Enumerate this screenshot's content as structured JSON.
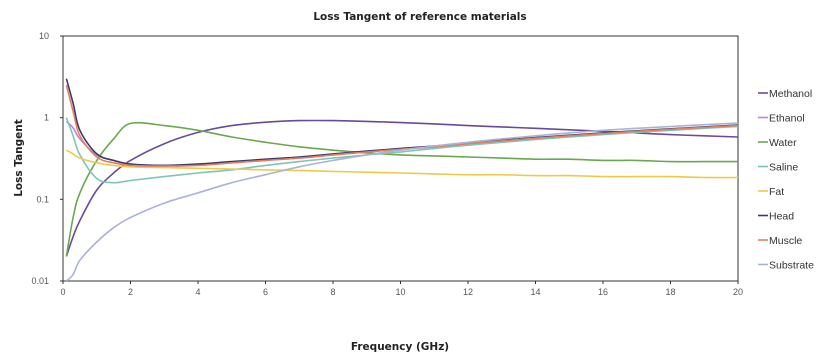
{
  "chart_data": {
    "type": "line",
    "title": "Loss Tangent of reference materials",
    "xlabel": "Frequency (GHz)",
    "ylabel": "Loss Tangent",
    "xlim": [
      0,
      20
    ],
    "ylim": [
      0.01,
      10
    ],
    "yscale": "log",
    "grid": false,
    "legend_position": "right",
    "x_ticks": [
      0,
      2,
      4,
      6,
      8,
      10,
      12,
      14,
      16,
      18,
      20
    ],
    "y_ticks": [
      0.01,
      0.1,
      1,
      10
    ],
    "x_tick_labels": [
      "0",
      "2",
      "4",
      "6",
      "8",
      "10",
      "12",
      "14",
      "16",
      "18",
      "20"
    ],
    "y_tick_labels": [
      "0.01",
      "0.1",
      "1",
      "10"
    ],
    "x": [
      0.1,
      0.3,
      0.5,
      1,
      1.5,
      2,
      3,
      4,
      5,
      6,
      7,
      8,
      9,
      10,
      11,
      12,
      13,
      14,
      15,
      16,
      17,
      18,
      19,
      20
    ],
    "series": [
      {
        "name": "Methanol",
        "color": "#6a4a9c",
        "values": [
          0.02,
          0.035,
          0.055,
          0.13,
          0.21,
          0.3,
          0.48,
          0.66,
          0.8,
          0.88,
          0.92,
          0.92,
          0.9,
          0.87,
          0.84,
          0.8,
          0.77,
          0.74,
          0.71,
          0.68,
          0.65,
          0.62,
          0.6,
          0.58
        ]
      },
      {
        "name": "Ethanol",
        "color": "#c084d8",
        "values": [
          0.9,
          0.75,
          0.55,
          0.35,
          0.3,
          0.27,
          0.26,
          0.27,
          0.28,
          0.3,
          0.32,
          0.35,
          0.38,
          0.41,
          0.44,
          0.48,
          0.52,
          0.56,
          0.6,
          0.64,
          0.68,
          0.72,
          0.76,
          0.8
        ]
      },
      {
        "name": "Water",
        "color": "#6aa84f",
        "values": [
          0.02,
          0.06,
          0.12,
          0.3,
          0.55,
          0.85,
          0.8,
          0.7,
          0.58,
          0.5,
          0.44,
          0.4,
          0.37,
          0.35,
          0.34,
          0.33,
          0.32,
          0.31,
          0.31,
          0.3,
          0.3,
          0.29,
          0.29,
          0.29
        ]
      },
      {
        "name": "Saline",
        "color": "#7fc4b8",
        "values": [
          1.0,
          0.6,
          0.35,
          0.18,
          0.16,
          0.17,
          0.19,
          0.21,
          0.23,
          0.26,
          0.29,
          0.32,
          0.35,
          0.38,
          0.42,
          0.46,
          0.5,
          0.54,
          0.58,
          0.62,
          0.66,
          0.7,
          0.74,
          0.78
        ]
      },
      {
        "name": "Fat",
        "color": "#f0c94a",
        "values": [
          0.4,
          0.36,
          0.32,
          0.28,
          0.26,
          0.25,
          0.245,
          0.24,
          0.235,
          0.23,
          0.225,
          0.22,
          0.215,
          0.21,
          0.205,
          0.2,
          0.2,
          0.195,
          0.195,
          0.19,
          0.19,
          0.19,
          0.185,
          0.185
        ]
      },
      {
        "name": "Head",
        "color": "#3a3a6a",
        "values": [
          3.0,
          1.5,
          0.7,
          0.36,
          0.3,
          0.27,
          0.26,
          0.27,
          0.29,
          0.31,
          0.33,
          0.36,
          0.39,
          0.42,
          0.45,
          0.49,
          0.53,
          0.57,
          0.61,
          0.65,
          0.69,
          0.73,
          0.77,
          0.81
        ]
      },
      {
        "name": "Muscle",
        "color": "#e08060",
        "values": [
          2.5,
          1.2,
          0.6,
          0.33,
          0.28,
          0.26,
          0.255,
          0.26,
          0.28,
          0.3,
          0.32,
          0.35,
          0.38,
          0.41,
          0.44,
          0.48,
          0.52,
          0.56,
          0.6,
          0.64,
          0.68,
          0.72,
          0.76,
          0.8
        ]
      },
      {
        "name": "Substrate",
        "color": "#a9b3d6",
        "values": [
          0.008,
          0.012,
          0.018,
          0.03,
          0.045,
          0.06,
          0.09,
          0.12,
          0.16,
          0.2,
          0.25,
          0.3,
          0.35,
          0.4,
          0.45,
          0.5,
          0.55,
          0.6,
          0.65,
          0.7,
          0.74,
          0.78,
          0.82,
          0.86
        ]
      }
    ]
  }
}
